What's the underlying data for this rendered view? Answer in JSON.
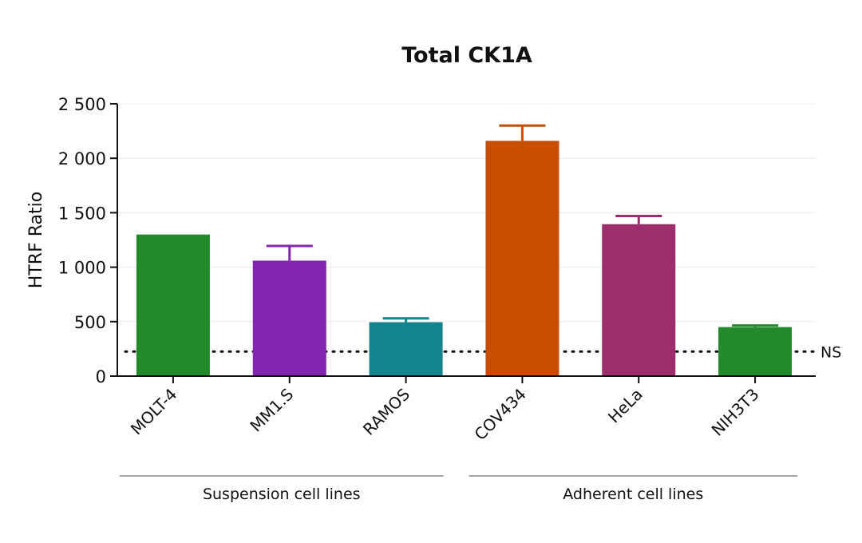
{
  "chart_data": {
    "type": "bar",
    "title": "Total CK1A",
    "ylabel": "HTRF Ratio",
    "xlabel": "",
    "ylim": [
      0,
      2500
    ],
    "yticks": [
      0,
      500,
      1000,
      1500,
      2000,
      2500
    ],
    "ytick_labels": [
      "0",
      "500",
      "1 000",
      "1 500",
      "2 000",
      "2 500"
    ],
    "grid": "horizontal",
    "categories": [
      "MOLT-4",
      "MM1.S",
      "RAMOS",
      "COV434",
      "HeLa",
      "NIH3T3"
    ],
    "values": [
      1300,
      1060,
      495,
      2160,
      1395,
      450
    ],
    "errors": [
      0,
      135,
      35,
      140,
      75,
      15
    ],
    "colors": [
      "#238a2b",
      "#8226b1",
      "#14848c",
      "#c94f00",
      "#9c2f6b",
      "#238a2b"
    ],
    "threshold": {
      "label": "NS",
      "value": 225
    },
    "groups": [
      {
        "label": "Suspension cell lines",
        "categories": [
          "MOLT-4",
          "MM1.S",
          "RAMOS"
        ]
      },
      {
        "label": "Adherent cell lines",
        "categories": [
          "COV434",
          "HeLa",
          "NIH3T3"
        ]
      }
    ]
  }
}
